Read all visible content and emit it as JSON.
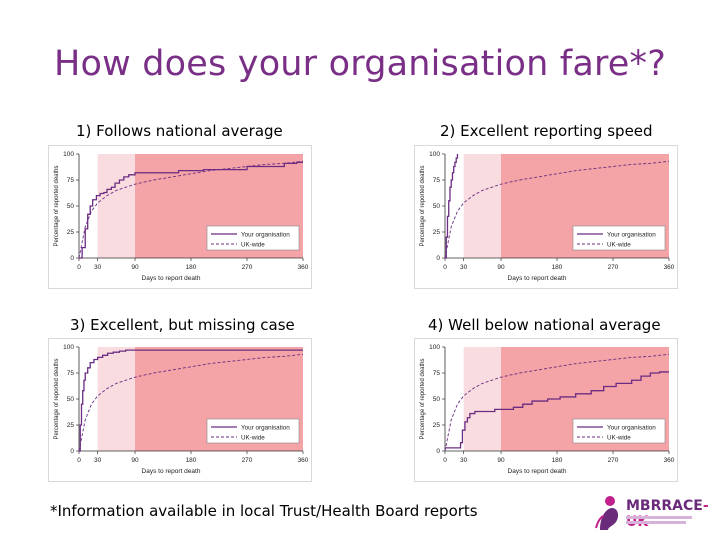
{
  "page": {
    "title": "How does your organisation fare*?",
    "footnote": "*Information available in local Trust/Health Board reports"
  },
  "logo": {
    "text_main": "MBRRACE",
    "text_dash": "-UK"
  },
  "colors": {
    "title": "#7a2f86",
    "organisation_line": "#6b2c82",
    "uk_line": "#6b2c82",
    "band_light": "#f9dcdf",
    "band_dark": "#f4a3a6"
  },
  "chart_data": [
    {
      "type": "line",
      "title": "1) Follows national average",
      "xlabel": "Days to report death",
      "ylabel": "Percentage of reported deaths",
      "xlim": [
        0,
        360
      ],
      "ylim": [
        0,
        100
      ],
      "xticks": [
        0,
        30,
        90,
        180,
        270,
        360
      ],
      "yticks": [
        0,
        25,
        50,
        75,
        100
      ],
      "bands": [
        {
          "from": 30,
          "to": 90,
          "shade": "light"
        },
        {
          "from": 90,
          "to": 360,
          "shade": "dark"
        }
      ],
      "legend": {
        "position": "bottom-right",
        "entries": [
          "Your organisation",
          "UK-wide"
        ]
      },
      "series": [
        {
          "name": "Your organisation",
          "style": "step",
          "x": [
            0,
            5,
            10,
            14,
            18,
            22,
            28,
            34,
            40,
            45,
            52,
            58,
            65,
            72,
            80,
            90,
            120,
            160,
            200,
            240,
            270,
            300,
            330,
            350,
            360
          ],
          "y": [
            0,
            10,
            28,
            42,
            50,
            56,
            60,
            62,
            63,
            66,
            68,
            72,
            75,
            78,
            80,
            82,
            82,
            84,
            85,
            85,
            88,
            88,
            91,
            92,
            92
          ]
        },
        {
          "name": "UK-wide",
          "style": "dashed",
          "x": [
            0,
            10,
            20,
            30,
            45,
            60,
            75,
            90,
            120,
            150,
            180,
            210,
            240,
            270,
            300,
            330,
            360
          ],
          "y": [
            0,
            30,
            45,
            53,
            60,
            65,
            68,
            71,
            75,
            78,
            81,
            84,
            86,
            88,
            90,
            91,
            93
          ]
        }
      ]
    },
    {
      "type": "line",
      "title": "2) Excellent reporting speed",
      "xlabel": "Days to report death",
      "ylabel": "Percentage of reported deaths",
      "xlim": [
        0,
        360
      ],
      "ylim": [
        0,
        100
      ],
      "xticks": [
        0,
        30,
        90,
        180,
        270,
        360
      ],
      "yticks": [
        0,
        25,
        50,
        75,
        100
      ],
      "bands": [
        {
          "from": 30,
          "to": 90,
          "shade": "light"
        },
        {
          "from": 90,
          "to": 360,
          "shade": "dark"
        }
      ],
      "legend": {
        "position": "bottom-right",
        "entries": [
          "Your organisation",
          "UK-wide"
        ]
      },
      "series": [
        {
          "name": "Your organisation",
          "style": "step",
          "x": [
            0,
            2,
            4,
            6,
            8,
            10,
            12,
            14,
            16,
            18,
            20
          ],
          "y": [
            0,
            20,
            40,
            55,
            68,
            75,
            82,
            88,
            92,
            96,
            100
          ]
        },
        {
          "name": "UK-wide",
          "style": "dashed",
          "x": [
            0,
            10,
            20,
            30,
            45,
            60,
            75,
            90,
            120,
            150,
            180,
            210,
            240,
            270,
            300,
            330,
            360
          ],
          "y": [
            0,
            30,
            45,
            53,
            60,
            65,
            68,
            71,
            75,
            78,
            81,
            84,
            86,
            88,
            90,
            91,
            93
          ]
        }
      ]
    },
    {
      "type": "line",
      "title": "3) Excellent, but missing case",
      "xlabel": "Days to report death",
      "ylabel": "Percentage of reported deaths",
      "xlim": [
        0,
        360
      ],
      "ylim": [
        0,
        100
      ],
      "xticks": [
        0,
        30,
        90,
        180,
        270,
        360
      ],
      "yticks": [
        0,
        25,
        50,
        75,
        100
      ],
      "bands": [
        {
          "from": 30,
          "to": 90,
          "shade": "light"
        },
        {
          "from": 90,
          "to": 360,
          "shade": "dark"
        }
      ],
      "legend": {
        "position": "bottom-right",
        "entries": [
          "Your organisation",
          "UK-wide"
        ]
      },
      "series": [
        {
          "name": "Your organisation",
          "style": "step",
          "x": [
            0,
            2,
            4,
            6,
            8,
            10,
            14,
            18,
            24,
            30,
            38,
            46,
            55,
            65,
            75,
            90,
            360
          ],
          "y": [
            0,
            25,
            45,
            58,
            68,
            75,
            80,
            85,
            88,
            90,
            92,
            94,
            95,
            96,
            97,
            97,
            97
          ]
        },
        {
          "name": "UK-wide",
          "style": "dashed",
          "x": [
            0,
            10,
            20,
            30,
            45,
            60,
            75,
            90,
            120,
            150,
            180,
            210,
            240,
            270,
            300,
            330,
            360
          ],
          "y": [
            0,
            30,
            45,
            53,
            60,
            65,
            68,
            71,
            75,
            78,
            81,
            84,
            86,
            88,
            90,
            91,
            93
          ]
        }
      ]
    },
    {
      "type": "line",
      "title": "4) Well below national average",
      "xlabel": "Days to report death",
      "ylabel": "Percentage of reported deaths",
      "xlim": [
        0,
        360
      ],
      "ylim": [
        0,
        100
      ],
      "xticks": [
        0,
        30,
        90,
        180,
        270,
        360
      ],
      "yticks": [
        0,
        25,
        50,
        75,
        100
      ],
      "bands": [
        {
          "from": 30,
          "to": 90,
          "shade": "light"
        },
        {
          "from": 90,
          "to": 360,
          "shade": "dark"
        }
      ],
      "legend": {
        "position": "bottom-right",
        "entries": [
          "Your organisation",
          "UK-wide"
        ]
      },
      "series": [
        {
          "name": "Your organisation",
          "style": "step",
          "x": [
            0,
            20,
            25,
            28,
            32,
            36,
            40,
            48,
            60,
            80,
            110,
            125,
            140,
            165,
            185,
            210,
            235,
            255,
            275,
            300,
            315,
            330,
            345,
            360
          ],
          "y": [
            3,
            3,
            8,
            20,
            28,
            32,
            36,
            38,
            38,
            40,
            42,
            45,
            48,
            50,
            52,
            55,
            58,
            62,
            65,
            68,
            72,
            75,
            76,
            76
          ]
        },
        {
          "name": "UK-wide",
          "style": "dashed",
          "x": [
            0,
            10,
            20,
            30,
            45,
            60,
            75,
            90,
            120,
            150,
            180,
            210,
            240,
            270,
            300,
            330,
            360
          ],
          "y": [
            0,
            30,
            45,
            53,
            60,
            65,
            68,
            71,
            75,
            78,
            81,
            84,
            86,
            88,
            90,
            91,
            93
          ]
        }
      ]
    }
  ]
}
